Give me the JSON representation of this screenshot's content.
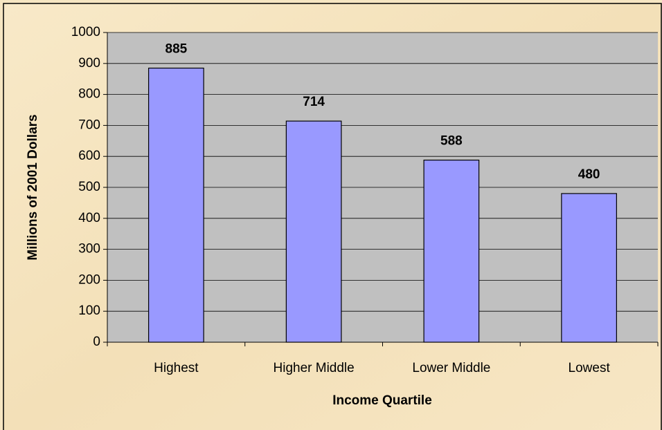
{
  "chart_data": {
    "type": "bar",
    "categories": [
      "Highest",
      "Higher Middle",
      "Lower Middle",
      "Lowest"
    ],
    "values": [
      885,
      714,
      588,
      480
    ],
    "color": "#9999ff",
    "ylabel": "Millions of 2001 Dollars",
    "xlabel": "Income Quartile",
    "ylim": [
      0,
      1000
    ],
    "yticks": [
      0,
      100,
      200,
      300,
      400,
      500,
      600,
      700,
      800,
      900,
      1000
    ],
    "grid": true
  }
}
